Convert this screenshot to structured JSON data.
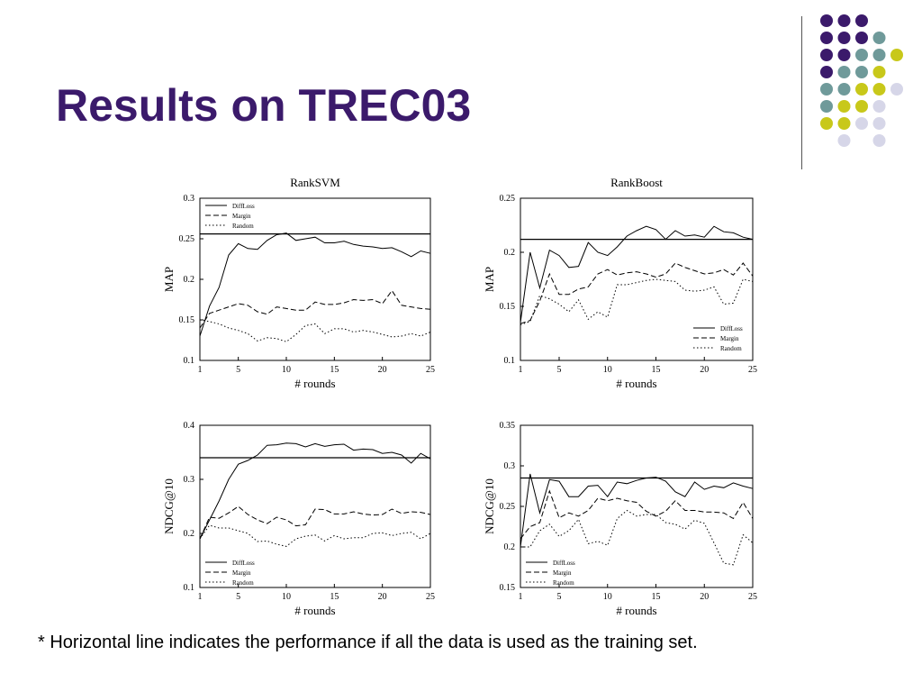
{
  "slide": {
    "title": "Results on TREC03",
    "footnote": "* Horizontal line indicates the performance if all the data is used as the training set."
  },
  "decor": {
    "dot_colors": [
      "#3b1a6b",
      "#6f9a9a",
      "#c8c81a",
      "#d6d6e8"
    ],
    "dot_grid": [
      [
        0,
        0,
        0,
        -1,
        -1
      ],
      [
        0,
        0,
        0,
        1,
        -1
      ],
      [
        0,
        0,
        1,
        1,
        2
      ],
      [
        0,
        1,
        1,
        2,
        -1
      ],
      [
        1,
        1,
        2,
        2,
        3
      ],
      [
        1,
        2,
        2,
        3,
        -1
      ],
      [
        2,
        2,
        3,
        3,
        -1
      ],
      [
        -1,
        3,
        -1,
        3,
        -1
      ]
    ]
  },
  "chart_data": [
    {
      "type": "line",
      "title": "RankSVM",
      "xlabel": "# rounds",
      "ylabel": "MAP",
      "xlim": [
        1,
        25
      ],
      "ylim": [
        0.1,
        0.3
      ],
      "xticks": [
        1,
        5,
        10,
        15,
        20,
        25
      ],
      "yticks": [
        0.1,
        0.15,
        0.2,
        0.25,
        0.3
      ],
      "yticklabels": [
        "0.1",
        "0.15",
        "0.2",
        "0.25",
        "0.3"
      ],
      "baseline": 0.256,
      "legend_position": "top-left",
      "x": [
        1,
        2,
        3,
        4,
        5,
        6,
        7,
        8,
        9,
        10,
        11,
        12,
        13,
        14,
        15,
        16,
        17,
        18,
        19,
        20,
        21,
        22,
        23,
        24,
        25
      ],
      "series": [
        {
          "name": "DiffLoss",
          "style": "solid",
          "values": [
            0.13,
            0.167,
            0.19,
            0.23,
            0.244,
            0.238,
            0.237,
            0.248,
            0.255,
            0.257,
            0.248,
            0.25,
            0.252,
            0.245,
            0.245,
            0.247,
            0.243,
            0.241,
            0.24,
            0.238,
            0.239,
            0.234,
            0.228,
            0.235,
            0.232
          ]
        },
        {
          "name": "Margin",
          "style": "dashed",
          "values": [
            0.14,
            0.158,
            0.162,
            0.166,
            0.17,
            0.168,
            0.16,
            0.157,
            0.166,
            0.164,
            0.162,
            0.162,
            0.172,
            0.169,
            0.169,
            0.171,
            0.175,
            0.174,
            0.175,
            0.17,
            0.186,
            0.168,
            0.166,
            0.164,
            0.163
          ]
        },
        {
          "name": "Random",
          "style": "dotted",
          "values": [
            0.15,
            0.148,
            0.145,
            0.14,
            0.137,
            0.133,
            0.124,
            0.128,
            0.127,
            0.123,
            0.132,
            0.143,
            0.145,
            0.133,
            0.139,
            0.139,
            0.135,
            0.137,
            0.135,
            0.132,
            0.129,
            0.13,
            0.133,
            0.13,
            0.135
          ]
        }
      ]
    },
    {
      "type": "line",
      "title": "RankBoost",
      "xlabel": "# rounds",
      "ylabel": "MAP",
      "xlim": [
        1,
        25
      ],
      "ylim": [
        0.1,
        0.25
      ],
      "xticks": [
        1,
        5,
        10,
        15,
        20,
        25
      ],
      "yticks": [
        0.1,
        0.15,
        0.2,
        0.25
      ],
      "yticklabels": [
        "0.1",
        "0.15",
        "0.2",
        "0.25"
      ],
      "baseline": 0.212,
      "legend_position": "bottom-right",
      "x": [
        1,
        2,
        3,
        4,
        5,
        6,
        7,
        8,
        9,
        10,
        11,
        12,
        13,
        14,
        15,
        16,
        17,
        18,
        19,
        20,
        21,
        22,
        23,
        24,
        25
      ],
      "series": [
        {
          "name": "DiffLoss",
          "style": "solid",
          "values": [
            0.135,
            0.2,
            0.167,
            0.202,
            0.197,
            0.186,
            0.187,
            0.209,
            0.2,
            0.197,
            0.205,
            0.215,
            0.22,
            0.224,
            0.221,
            0.212,
            0.22,
            0.215,
            0.216,
            0.214,
            0.224,
            0.219,
            0.218,
            0.214,
            0.212
          ]
        },
        {
          "name": "Margin",
          "style": "dashed",
          "values": [
            0.134,
            0.137,
            0.155,
            0.18,
            0.161,
            0.161,
            0.166,
            0.168,
            0.18,
            0.184,
            0.179,
            0.181,
            0.182,
            0.18,
            0.177,
            0.18,
            0.19,
            0.186,
            0.183,
            0.18,
            0.181,
            0.184,
            0.179,
            0.19,
            0.178
          ]
        },
        {
          "name": "Random",
          "style": "dotted",
          "values": [
            0.133,
            0.136,
            0.16,
            0.157,
            0.152,
            0.145,
            0.156,
            0.138,
            0.145,
            0.14,
            0.17,
            0.17,
            0.172,
            0.174,
            0.175,
            0.174,
            0.173,
            0.165,
            0.164,
            0.165,
            0.168,
            0.152,
            0.153,
            0.175,
            0.173
          ]
        }
      ]
    },
    {
      "type": "line",
      "title": "",
      "xlabel": "# rounds",
      "ylabel": "NDCG@10",
      "xlim": [
        1,
        25
      ],
      "ylim": [
        0.1,
        0.4
      ],
      "xticks": [
        1,
        5,
        10,
        15,
        20,
        25
      ],
      "yticks": [
        0.1,
        0.2,
        0.3,
        0.4
      ],
      "yticklabels": [
        "0.1",
        "0.2",
        "0.3",
        "0.4"
      ],
      "baseline": 0.34,
      "legend_position": "bottom-left",
      "x": [
        1,
        2,
        3,
        4,
        5,
        6,
        7,
        8,
        9,
        10,
        11,
        12,
        13,
        14,
        15,
        16,
        17,
        18,
        19,
        20,
        21,
        22,
        23,
        24,
        25
      ],
      "series": [
        {
          "name": "DiffLoss",
          "style": "solid",
          "values": [
            0.19,
            0.225,
            0.26,
            0.3,
            0.328,
            0.335,
            0.345,
            0.363,
            0.364,
            0.367,
            0.366,
            0.36,
            0.366,
            0.361,
            0.364,
            0.365,
            0.354,
            0.356,
            0.355,
            0.348,
            0.35,
            0.345,
            0.33,
            0.348,
            0.338
          ]
        },
        {
          "name": "Margin",
          "style": "dashed",
          "values": [
            0.19,
            0.23,
            0.228,
            0.238,
            0.25,
            0.235,
            0.225,
            0.218,
            0.23,
            0.225,
            0.214,
            0.216,
            0.245,
            0.244,
            0.236,
            0.236,
            0.24,
            0.236,
            0.234,
            0.235,
            0.245,
            0.237,
            0.24,
            0.239,
            0.235
          ]
        },
        {
          "name": "Random",
          "style": "dotted",
          "values": [
            0.19,
            0.215,
            0.21,
            0.21,
            0.205,
            0.2,
            0.185,
            0.186,
            0.18,
            0.176,
            0.19,
            0.195,
            0.197,
            0.186,
            0.196,
            0.19,
            0.192,
            0.192,
            0.2,
            0.201,
            0.196,
            0.2,
            0.202,
            0.19,
            0.2
          ]
        }
      ]
    },
    {
      "type": "line",
      "title": "",
      "xlabel": "# rounds",
      "ylabel": "NDCG@10",
      "xlim": [
        1,
        25
      ],
      "ylim": [
        0.15,
        0.35
      ],
      "xticks": [
        1,
        5,
        10,
        15,
        20,
        25
      ],
      "yticks": [
        0.15,
        0.2,
        0.25,
        0.3,
        0.35
      ],
      "yticklabels": [
        "0.15",
        "0.2",
        "0.25",
        "0.3",
        "0.35"
      ],
      "baseline": 0.285,
      "legend_position": "bottom-left",
      "x": [
        1,
        2,
        3,
        4,
        5,
        6,
        7,
        8,
        9,
        10,
        11,
        12,
        13,
        14,
        15,
        16,
        17,
        18,
        19,
        20,
        21,
        22,
        23,
        24,
        25
      ],
      "series": [
        {
          "name": "DiffLoss",
          "style": "solid",
          "values": [
            0.2,
            0.29,
            0.242,
            0.283,
            0.281,
            0.262,
            0.262,
            0.275,
            0.276,
            0.262,
            0.28,
            0.278,
            0.282,
            0.285,
            0.286,
            0.281,
            0.268,
            0.262,
            0.28,
            0.271,
            0.275,
            0.273,
            0.279,
            0.275,
            0.272
          ]
        },
        {
          "name": "Margin",
          "style": "dashed",
          "values": [
            0.21,
            0.225,
            0.23,
            0.269,
            0.236,
            0.242,
            0.238,
            0.245,
            0.26,
            0.257,
            0.26,
            0.257,
            0.255,
            0.244,
            0.238,
            0.244,
            0.257,
            0.245,
            0.245,
            0.243,
            0.243,
            0.242,
            0.235,
            0.255,
            0.235
          ]
        },
        {
          "name": "Random",
          "style": "dotted",
          "values": [
            0.2,
            0.2,
            0.22,
            0.228,
            0.213,
            0.22,
            0.234,
            0.204,
            0.207,
            0.202,
            0.235,
            0.245,
            0.238,
            0.24,
            0.24,
            0.23,
            0.228,
            0.222,
            0.233,
            0.229,
            0.205,
            0.18,
            0.178,
            0.215,
            0.205
          ]
        }
      ]
    }
  ]
}
